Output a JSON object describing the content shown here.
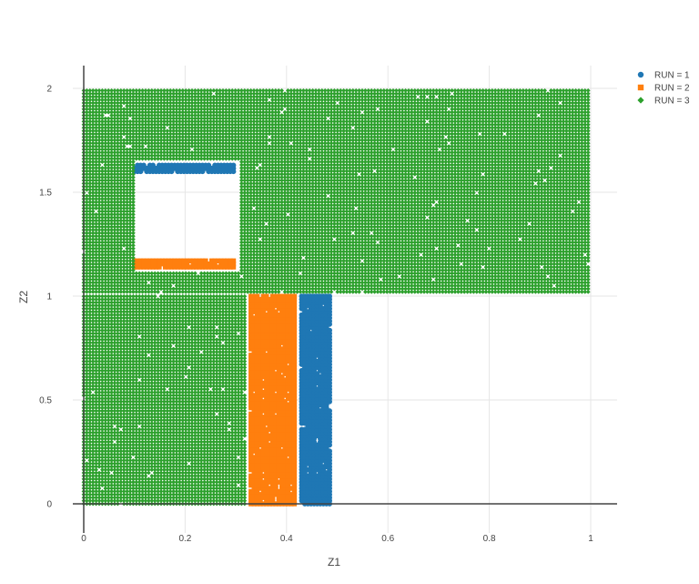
{
  "chart_data": {
    "type": "scatter",
    "title": "",
    "xlabel": "Z1",
    "ylabel": "Z2",
    "xlim": [
      -0.02,
      1.05
    ],
    "ylim": [
      -0.05,
      2.11
    ],
    "xticks": [
      0,
      0.2,
      0.4,
      0.6,
      0.8,
      1
    ],
    "xtick_labels": [
      "0",
      "0.2",
      "0.4",
      "0.6",
      "0.8",
      "1"
    ],
    "yticks": [
      0,
      0.5,
      1,
      1.5,
      2
    ],
    "ytick_labels": [
      "0",
      "0.5",
      "1",
      "1.5",
      "2"
    ],
    "grid": true,
    "legend_position": "top-right",
    "series": [
      {
        "name": "RUN = 1",
        "color": "#1f77b4",
        "marker": "circle",
        "regions": [
          {
            "x": [
              0.43,
              0.49
            ],
            "y": [
              0.0,
              1.0
            ]
          },
          {
            "x": [
              0.1,
              0.3
            ],
            "y": [
              1.6,
              1.64
            ]
          }
        ]
      },
      {
        "name": "RUN = 2",
        "color": "#ff7f0e",
        "marker": "square",
        "regions": [
          {
            "x": [
              0.33,
              0.42
            ],
            "y": [
              0.0,
              1.0
            ]
          },
          {
            "x": [
              0.1,
              0.3
            ],
            "y": [
              1.14,
              1.18
            ]
          }
        ]
      },
      {
        "name": "RUN = 3",
        "color": "#2ca02c",
        "marker": "diamond",
        "regions": [
          {
            "x": [
              0.0,
              0.32
            ],
            "y": [
              0.0,
              1.0
            ]
          },
          {
            "x": [
              0.0,
              1.0
            ],
            "y": [
              1.02,
              1.99
            ],
            "exclude": {
              "x": [
                0.1,
                0.31
              ],
              "y": [
                1.12,
                1.66
              ]
            }
          }
        ]
      }
    ]
  }
}
